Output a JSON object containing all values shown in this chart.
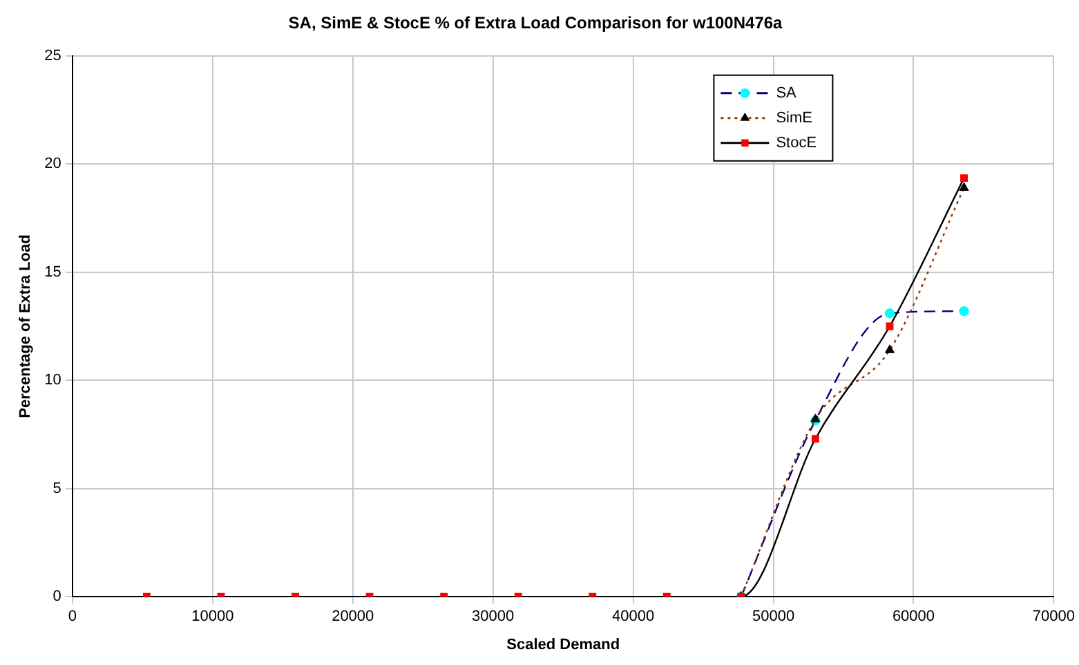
{
  "chart_data": {
    "type": "line",
    "title": "SA, SimE & StocE % of Extra Load Comparison for w100N476a",
    "xlabel": "Scaled Demand",
    "ylabel": "Percentage of Extra Load",
    "x": [
      5300,
      10600,
      15900,
      21200,
      26500,
      31800,
      37100,
      42400,
      47700,
      53000,
      58300,
      63600
    ],
    "series": [
      {
        "name": "SA",
        "color": "#000080",
        "colors": [
          "#00ffff",
          "#00ffff",
          "#00ffff",
          "#00ffff",
          "#00ffff",
          "#00ffff",
          "#00ffff",
          "#00ffff",
          "#00ffff",
          "#00ffff",
          "#00ffff",
          "#00ffff"
        ],
        "marker": "circle",
        "line_style": "dashed",
        "values": [
          null,
          null,
          null,
          null,
          null,
          null,
          null,
          null,
          0,
          8.15,
          13.1,
          13.2
        ]
      },
      {
        "name": "SimE",
        "color": "#993300",
        "colors": [
          "#000000",
          "#000000",
          "#000000",
          "#000000",
          "#000000",
          "#000000",
          "#000000",
          "#000000",
          "#000000",
          "#000000",
          "#000000",
          "#000000"
        ],
        "marker": "triangle",
        "line_style": "dotted",
        "values": [
          null,
          null,
          null,
          null,
          null,
          null,
          null,
          null,
          0,
          8.2,
          11.4,
          18.9
        ]
      },
      {
        "name": "StocE",
        "color": "#000000",
        "colors": [
          "#ff0000",
          "#ff0000",
          "#ff0000",
          "#ff0000",
          "#ff0000",
          "#ff0000",
          "#ff0000",
          "#ff0000",
          "#ff0000",
          "#ff0000",
          "#ff0000",
          "#ff0000"
        ],
        "marker": "square",
        "line_style": "solid",
        "values": [
          0,
          0,
          0,
          0,
          0,
          0,
          0,
          0,
          0,
          7.3,
          12.5,
          19.35
        ]
      }
    ],
    "xlim": [
      0,
      70000
    ],
    "xticks": [
      0,
      10000,
      20000,
      30000,
      40000,
      50000,
      60000,
      70000
    ],
    "ylim": [
      0,
      25
    ],
    "yticks": [
      0,
      5,
      10,
      15,
      20,
      25
    ],
    "grid": true,
    "legend": "top right"
  }
}
